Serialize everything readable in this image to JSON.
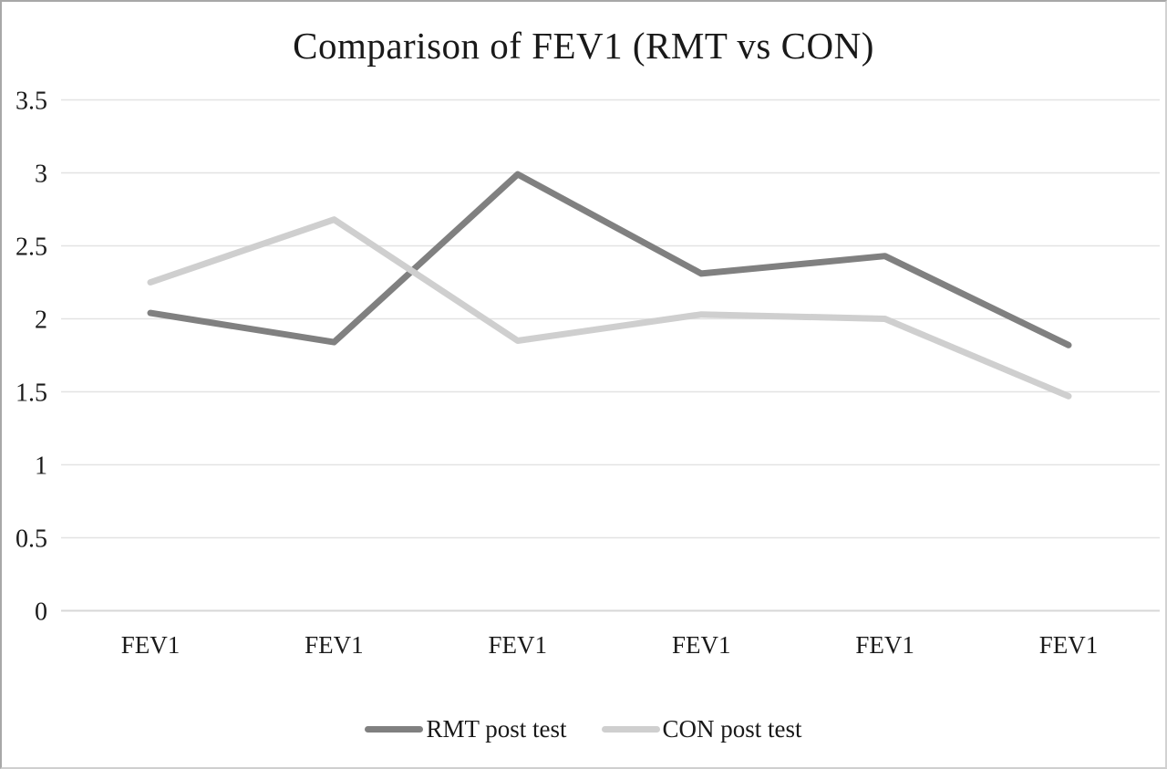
{
  "chart_data": {
    "type": "line",
    "title": "Comparison of FEV1 (RMT vs CON)",
    "categories": [
      "FEV1",
      "FEV1",
      "FEV1",
      "FEV1",
      "FEV1",
      "FEV1"
    ],
    "series": [
      {
        "name": "RMT post test",
        "color": "#808080",
        "values": [
          2.04,
          1.84,
          2.99,
          2.31,
          2.43,
          1.82
        ]
      },
      {
        "name": "CON post test",
        "color": "#cfcfcf",
        "values": [
          2.25,
          2.68,
          1.85,
          2.03,
          2.0,
          1.47
        ]
      }
    ],
    "ylim": [
      0,
      3.5
    ],
    "yticks": [
      0,
      0.5,
      1,
      1.5,
      2,
      2.5,
      3,
      3.5
    ],
    "ytick_labels": [
      "0",
      "0.5",
      "1",
      "1.5",
      "2",
      "2.5",
      "3",
      "3.5"
    ],
    "grid": true,
    "legend_position": "bottom",
    "line_width": 7
  },
  "colors": {
    "gridline": "#e3e3e3",
    "axis_line": "#d7d7d7",
    "text": "#1a1a1a",
    "background": "#ffffff"
  }
}
